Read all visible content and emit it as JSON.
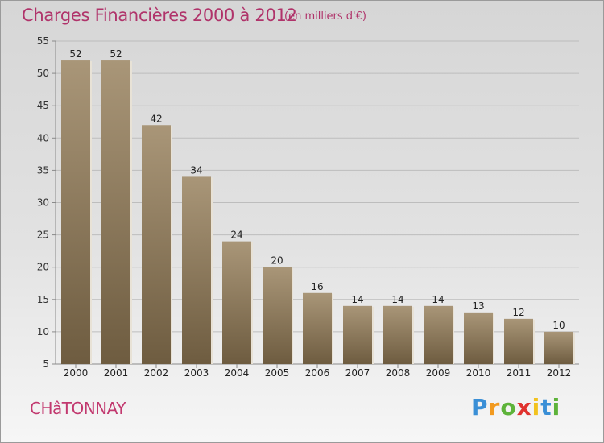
{
  "header": {
    "title": "Charges Financières 2000 à 2012",
    "subtitle": "(en milliers d'€)"
  },
  "footer": {
    "city": "CHâTONNAY",
    "logo_text": "Proxiti"
  },
  "colors": {
    "title": "#b0336a",
    "bar_top": "#a99678",
    "bar_bottom": "#6e5c40",
    "grid": "#bdbdbd"
  },
  "chart_data": {
    "type": "bar",
    "categories": [
      "2000",
      "2001",
      "2002",
      "2003",
      "2004",
      "2005",
      "2006",
      "2007",
      "2008",
      "2009",
      "2010",
      "2011",
      "2012"
    ],
    "values": [
      52,
      52,
      42,
      34,
      24,
      20,
      16,
      14,
      14,
      14,
      13,
      12,
      10
    ],
    "ylim": [
      5,
      55
    ],
    "yticks": [
      5,
      10,
      15,
      20,
      25,
      30,
      35,
      40,
      45,
      50,
      55
    ],
    "grid": true,
    "legend": "none",
    "title": "Charges Financières 2000 à 2012",
    "xlabel": "",
    "ylabel": ""
  }
}
